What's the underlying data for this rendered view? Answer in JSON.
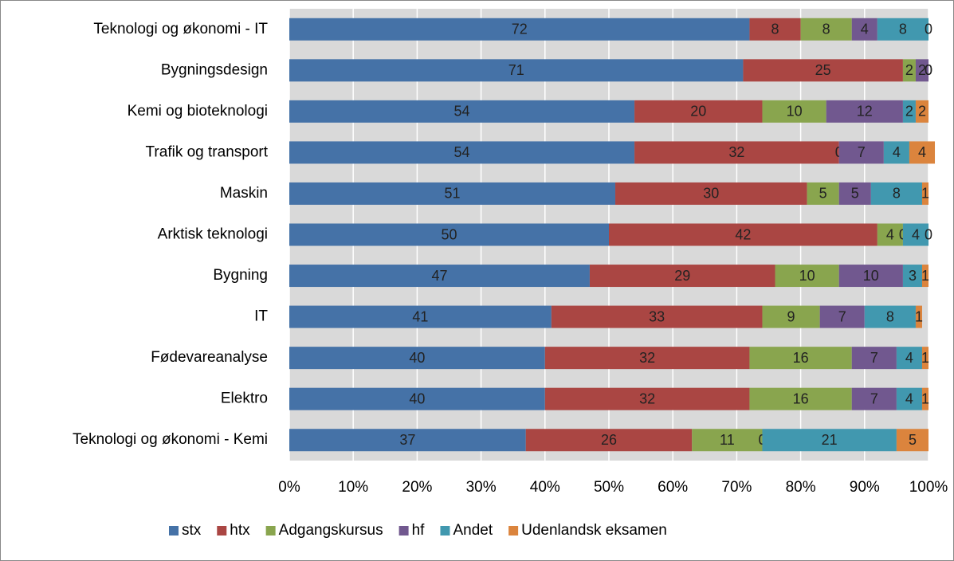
{
  "chart_data": {
    "type": "bar",
    "orientation": "horizontal",
    "stacked": true,
    "categories": [
      "Teknologi og økonomi - IT",
      "Bygningsdesign",
      "Kemi og bioteknologi",
      "Trafik og transport",
      "Maskin",
      "Arktisk teknologi",
      "Bygning",
      "IT",
      "Fødevareanalyse",
      "Elektro",
      "Teknologi og økonomi - Kemi"
    ],
    "series": [
      {
        "name": "stx",
        "color": "#4572a7",
        "values": [
          72,
          71,
          54,
          54,
          51,
          50,
          47,
          41,
          40,
          40,
          37
        ]
      },
      {
        "name": "htx",
        "color": "#aa4643",
        "values": [
          8,
          25,
          20,
          32,
          30,
          42,
          29,
          33,
          32,
          32,
          26
        ]
      },
      {
        "name": "Adgangskursus",
        "color": "#89a54e",
        "values": [
          8,
          2,
          10,
          0,
          5,
          4,
          10,
          9,
          16,
          16,
          11
        ]
      },
      {
        "name": "hf",
        "color": "#71588f",
        "values": [
          4,
          2,
          12,
          7,
          5,
          0,
          10,
          7,
          7,
          7,
          0
        ]
      },
      {
        "name": "Andet",
        "color": "#4198af",
        "values": [
          8,
          0,
          2,
          4,
          8,
          4,
          3,
          8,
          4,
          4,
          21
        ]
      },
      {
        "name": "Udenlandsk eksamen",
        "color": "#db843d",
        "values": [
          0,
          0,
          2,
          4,
          1,
          0,
          1,
          1,
          1,
          1,
          5
        ]
      }
    ],
    "xlim": [
      0,
      100
    ],
    "xticks": [
      {
        "value": 0,
        "label": "0%"
      },
      {
        "value": 10,
        "label": "10%"
      },
      {
        "value": 20,
        "label": "20%"
      },
      {
        "value": 30,
        "label": "30%"
      },
      {
        "value": 40,
        "label": "40%"
      },
      {
        "value": 50,
        "label": "50%"
      },
      {
        "value": 60,
        "label": "60%"
      },
      {
        "value": 70,
        "label": "70%"
      },
      {
        "value": 80,
        "label": "80%"
      },
      {
        "value": 90,
        "label": "90%"
      },
      {
        "value": 100,
        "label": "100%"
      }
    ],
    "grid": true,
    "legend": "bottom"
  }
}
